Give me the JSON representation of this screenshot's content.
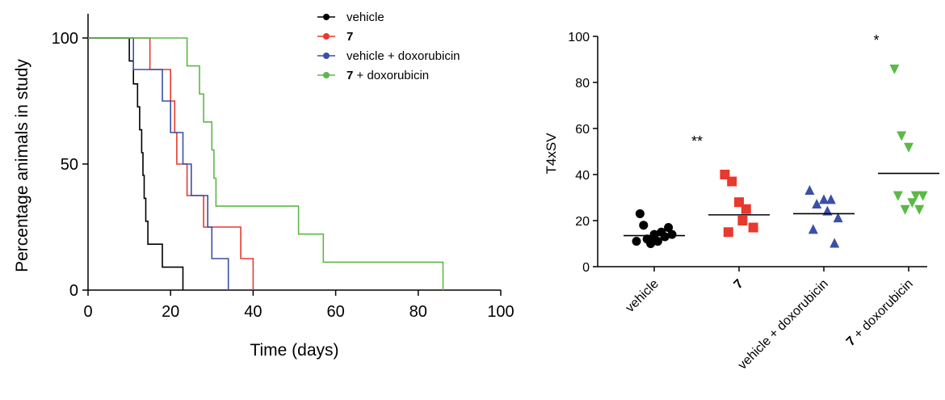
{
  "chart_data": [
    {
      "type": "line",
      "subtype": "kaplan-meier",
      "title": "",
      "xlabel": "Time (days)",
      "ylabel": "Percentage animals in study",
      "xlim": [
        0,
        100
      ],
      "ylim": [
        0,
        100
      ],
      "xticks": [
        "0",
        "20",
        "40",
        "60",
        "80",
        "100"
      ],
      "yticks": [
        "0",
        "50",
        "100"
      ],
      "grid": false,
      "legend_position": "top-right",
      "series": [
        {
          "name": "vehicle",
          "name_bold_part": "",
          "name_rest": "vehicle",
          "color": "#000000",
          "points": [
            [
              0,
              100
            ],
            [
              10,
              100
            ],
            [
              10,
              90.9
            ],
            [
              11,
              90.9
            ],
            [
              11,
              81.8
            ],
            [
              12,
              81.8
            ],
            [
              12,
              72.7
            ],
            [
              12.5,
              72.7
            ],
            [
              12.5,
              63.6
            ],
            [
              13,
              63.6
            ],
            [
              13,
              54.5
            ],
            [
              13.3,
              54.5
            ],
            [
              13.3,
              45.5
            ],
            [
              13.6,
              45.5
            ],
            [
              13.6,
              36.4
            ],
            [
              14,
              36.4
            ],
            [
              14,
              27.3
            ],
            [
              14.5,
              27.3
            ],
            [
              14.5,
              18.2
            ],
            [
              18,
              18.2
            ],
            [
              18,
              9.1
            ],
            [
              23,
              9.1
            ],
            [
              23,
              0
            ]
          ]
        },
        {
          "name": "7",
          "name_bold_part": "7",
          "name_rest": "",
          "color": "#e8392f",
          "points": [
            [
              0,
              100
            ],
            [
              15,
              100
            ],
            [
              15,
              87.5
            ],
            [
              20,
              87.5
            ],
            [
              20,
              75
            ],
            [
              21,
              75
            ],
            [
              21,
              62.5
            ],
            [
              21.5,
              62.5
            ],
            [
              21.5,
              50
            ],
            [
              24,
              50
            ],
            [
              24,
              37.5
            ],
            [
              28,
              37.5
            ],
            [
              28,
              25
            ],
            [
              37,
              25
            ],
            [
              37,
              12.5
            ],
            [
              40,
              12.5
            ],
            [
              40,
              0
            ]
          ]
        },
        {
          "name": "vehicle + doxorubicin",
          "name_bold_part": "",
          "name_rest": "vehicle + doxorubicin",
          "color": "#3a4fa8",
          "points": [
            [
              0,
              100
            ],
            [
              11,
              100
            ],
            [
              11,
              87.5
            ],
            [
              18,
              87.5
            ],
            [
              18,
              75
            ],
            [
              20,
              75
            ],
            [
              20,
              62.5
            ],
            [
              23,
              62.5
            ],
            [
              23,
              50
            ],
            [
              25,
              50
            ],
            [
              25,
              37.5
            ],
            [
              29,
              37.5
            ],
            [
              29,
              25
            ],
            [
              30,
              25
            ],
            [
              30,
              12.5
            ],
            [
              34,
              12.5
            ],
            [
              34,
              0
            ]
          ]
        },
        {
          "name": "7 + doxorubicin",
          "name_bold_part": "7",
          "name_rest": " + doxorubicin",
          "color": "#5bb947",
          "points": [
            [
              0,
              100
            ],
            [
              24,
              100
            ],
            [
              24,
              88.9
            ],
            [
              27,
              88.9
            ],
            [
              27,
              77.8
            ],
            [
              28,
              77.8
            ],
            [
              28,
              66.7
            ],
            [
              30,
              66.7
            ],
            [
              30,
              55.6
            ],
            [
              30.5,
              55.6
            ],
            [
              30.5,
              44.4
            ],
            [
              31,
              44.4
            ],
            [
              31,
              33.3
            ],
            [
              51,
              33.3
            ],
            [
              51,
              22.2
            ],
            [
              57,
              22.2
            ],
            [
              57,
              11.1
            ],
            [
              86,
              11.1
            ],
            [
              86,
              0
            ]
          ]
        }
      ]
    },
    {
      "type": "scatter",
      "subtype": "dot-plot",
      "title": "",
      "xlabel": "",
      "ylabel": "T4xSV",
      "ylim": [
        0,
        100
      ],
      "yticks": [
        "0",
        "20",
        "40",
        "60",
        "80",
        "100"
      ],
      "grid": false,
      "categories": [
        {
          "label": "vehicle",
          "label_bold_part": "",
          "label_rest": "vehicle",
          "color": "#000000",
          "marker": "circle",
          "mean": 13.5,
          "significance": "",
          "values": [
            23,
            12,
            14,
            15,
            17,
            18,
            11,
            13,
            10,
            11,
            14,
            12
          ]
        },
        {
          "label": "7",
          "label_bold_part": "7",
          "label_rest": "",
          "color": "#e8392f",
          "marker": "square",
          "mean": 22.5,
          "significance": "**",
          "values": [
            40,
            37,
            28,
            25,
            17,
            15,
            20
          ]
        },
        {
          "label": "vehicle + doxorubicin",
          "label_bold_part": "",
          "label_rest": "vehicle + doxorubicin",
          "color": "#3a4fa8",
          "marker": "triangle-up",
          "mean": 23,
          "significance": "",
          "values": [
            33,
            27,
            29,
            29,
            21,
            16,
            24,
            10
          ]
        },
        {
          "label": "7 + doxorubicin",
          "label_bold_part": "7",
          "label_rest": " + doxorubicin",
          "color": "#5bb947",
          "marker": "triangle-down",
          "mean": 40.5,
          "significance": "*",
          "values": [
            86,
            57,
            52,
            31,
            31,
            31,
            28,
            25,
            25
          ]
        }
      ]
    }
  ]
}
